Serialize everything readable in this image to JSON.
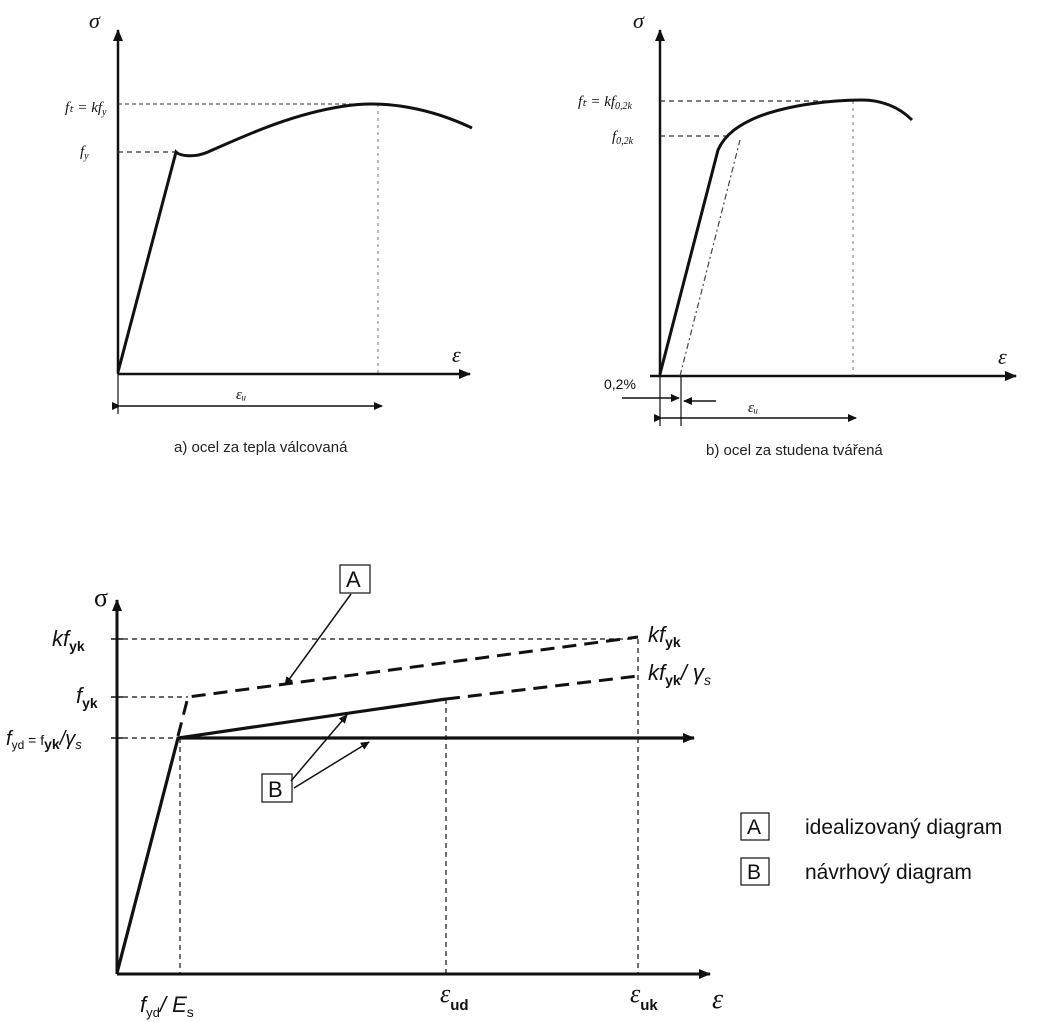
{
  "diagram_a": {
    "y_axis_label": "σ",
    "x_axis_label": "ε",
    "label_ft": "fₜ = kf",
    "label_ft_sub": "y",
    "label_fy": "f",
    "label_fy_sub": "y",
    "label_eu": "εᵤ",
    "caption": "a) ocel za tepla válcovaná"
  },
  "diagram_b": {
    "y_axis_label": "σ",
    "x_axis_label": "ε",
    "label_ft": "fₜ = kf",
    "label_ft_sub": "0,2k",
    "label_f02": "f",
    "label_f02_sub": "0,2k",
    "label_offset": "0,2%",
    "label_eu": "εᵤ",
    "caption": "b) ocel za studena tvářená"
  },
  "diagram_main": {
    "y_axis_label": "σ",
    "x_axis_label": "ε",
    "tick_kfyk": {
      "main": "kf",
      "sub": "yk"
    },
    "tick_fyk": {
      "main": "f",
      "sub": "yk"
    },
    "tick_fyd": {
      "main": "f",
      "sub": "yd",
      "eq": " = f",
      "sub2": "yk",
      "tail": "/γ",
      "sub3": "s"
    },
    "end_kfyk": {
      "main": "kf",
      "sub": "yk"
    },
    "end_kfyk_gs": {
      "main": "kf",
      "sub": "yk",
      "tail": "/ γ",
      "sub2": "s"
    },
    "x_fyd_es": {
      "main": "f",
      "sub": "yd",
      "tail": "/ E",
      "sub2": "s"
    },
    "x_eud": {
      "main": "ε",
      "sub": "ud"
    },
    "x_euk": {
      "main": "ε",
      "sub": "uk"
    },
    "callout_a": "A",
    "callout_b": "B"
  },
  "legend": [
    {
      "key": "A",
      "text": "idealizovaný diagram"
    },
    {
      "key": "B",
      "text": "návrhový diagram"
    }
  ]
}
